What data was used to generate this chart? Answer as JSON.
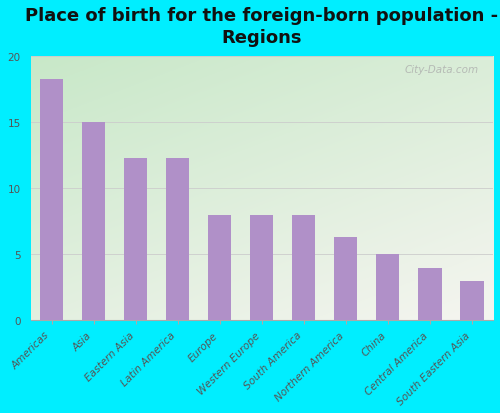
{
  "title": "Place of birth for the foreign-born population -\nRegions",
  "categories": [
    "Americas",
    "Asia",
    "Eastern Asia",
    "Latin America",
    "Europe",
    "Western Europe",
    "South America",
    "Northern America",
    "China",
    "Central America",
    "South Eastern Asia"
  ],
  "values": [
    18.3,
    15.0,
    12.3,
    12.3,
    8.0,
    8.0,
    8.0,
    6.3,
    5.0,
    4.0,
    3.0
  ],
  "bar_color": "#b090c8",
  "background_color": "#00eeff",
  "plot_bg_topleft": "#d8eed8",
  "plot_bg_bottomright": "#f8f8f8",
  "ylim": [
    0,
    20
  ],
  "yticks": [
    0,
    5,
    10,
    15,
    20
  ],
  "watermark": "City-Data.com",
  "title_fontsize": 13,
  "tick_fontsize": 7.5,
  "ytick_color": "#555555",
  "xtick_color": "#555555",
  "spine_color": "#aaaaaa"
}
